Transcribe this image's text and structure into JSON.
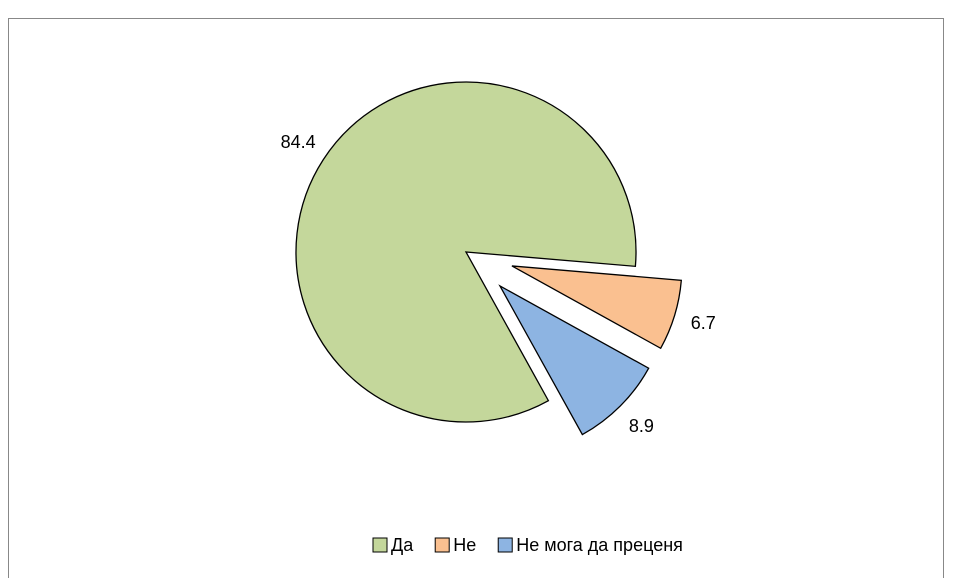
{
  "chart_data": {
    "type": "pie",
    "categories": [
      "Да",
      "Не",
      "Не мога да преценя"
    ],
    "values": [
      84.4,
      6.7,
      8.9
    ],
    "colors": [
      "#c4d79b",
      "#fac090",
      "#8db4e2"
    ],
    "legend": "bottom"
  }
}
